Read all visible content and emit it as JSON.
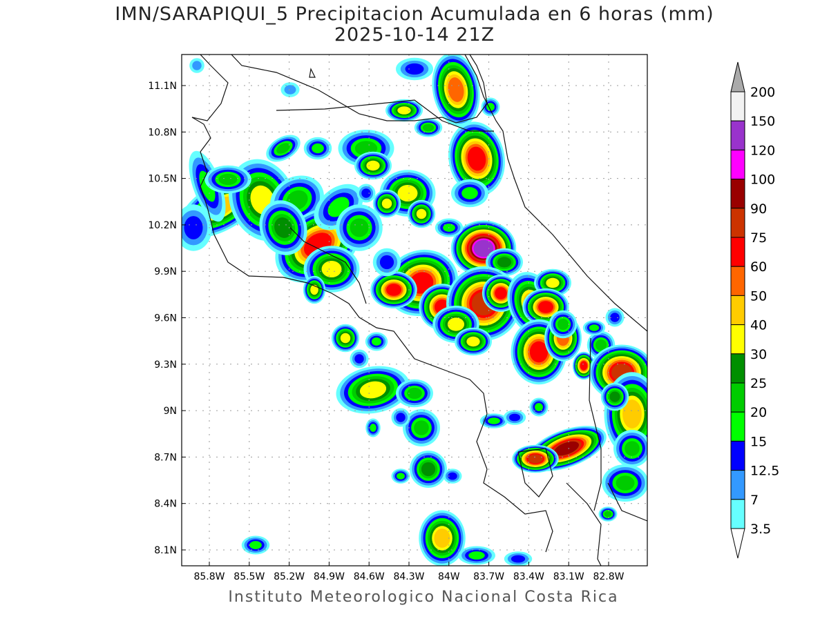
{
  "title": "IMN/SARAPIQUI_5 Precipitacion Acumulada en 6 horas (mm)",
  "subtitle": "2025-10-14 21Z",
  "footer": "Instituto Meteorologico Nacional Costa Rica",
  "lon_ticks": [
    "85.8W",
    "85.5W",
    "85.2W",
    "84.9W",
    "84.6W",
    "84.3W",
    "84W",
    "83.7W",
    "83.4W",
    "83.1W",
    "82.8W"
  ],
  "lat_ticks": [
    "11.1N",
    "10.8N",
    "10.5N",
    "10.2N",
    "9.9N",
    "9.6N",
    "9.3N",
    "9N",
    "8.7N",
    "8.4N",
    "8.1N"
  ],
  "colorbar": {
    "labels": [
      "3.5",
      "7",
      "12.5",
      "15",
      "20",
      "25",
      "30",
      "40",
      "50",
      "60",
      "75",
      "90",
      "100",
      "120",
      "150",
      "200"
    ],
    "colors": [
      "#66ffff",
      "#3399ff",
      "#0000ff",
      "#00ff00",
      "#00cc00",
      "#008f00",
      "#ffff00",
      "#ffcc00",
      "#ff6600",
      "#ff0000",
      "#cc3300",
      "#990000",
      "#ff00ff",
      "#9933cc",
      "#f2f2f2"
    ],
    "overflow_color": "#aaaaaa"
  }
}
